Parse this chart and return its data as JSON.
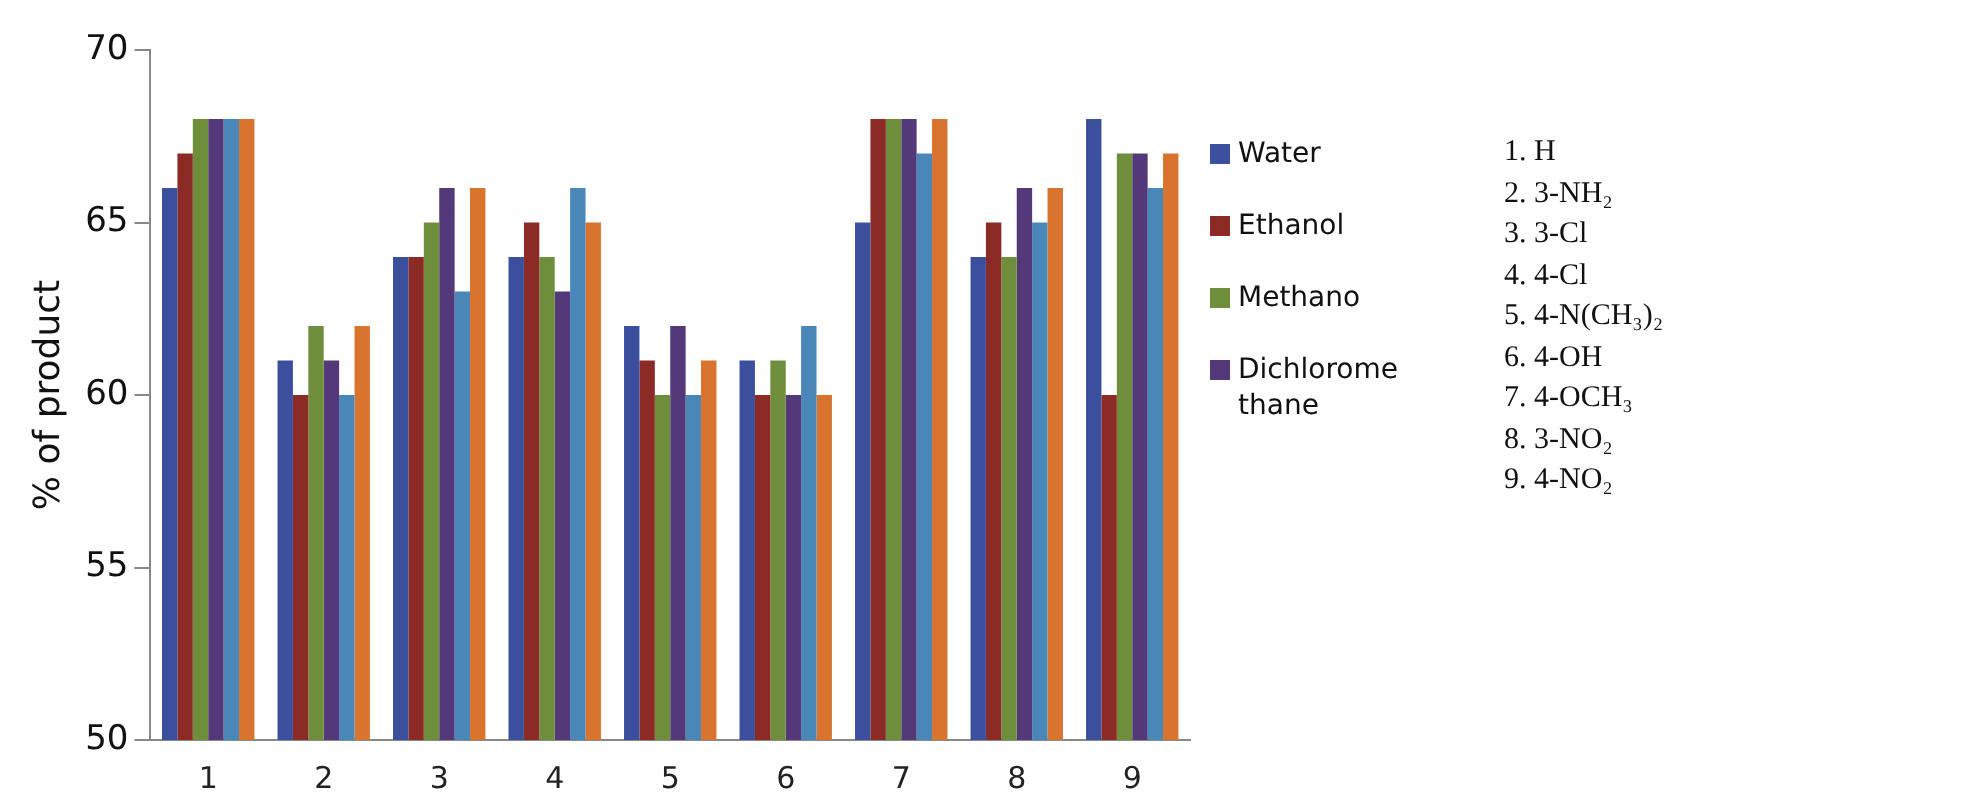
{
  "chart_data": {
    "type": "bar",
    "ylabel": "% of product",
    "categories": [
      "1",
      "2",
      "3",
      "4",
      "5",
      "6",
      "7",
      "8",
      "9"
    ],
    "series": [
      {
        "name": "Water",
        "color": "#3b4f9c",
        "values": [
          66,
          61,
          64,
          64,
          62,
          61,
          65,
          64,
          68
        ]
      },
      {
        "name": "Ethanol",
        "color": "#8c2b26",
        "values": [
          67,
          60,
          64,
          65,
          61,
          60,
          68,
          65,
          60
        ]
      },
      {
        "name": "Methano",
        "color": "#6e8e3c",
        "values": [
          68,
          62,
          65,
          64,
          60,
          61,
          68,
          64,
          67
        ]
      },
      {
        "name": "Dichloromethane",
        "color": "#54397a",
        "values": [
          68,
          61,
          66,
          63,
          62,
          60,
          68,
          66,
          67
        ]
      },
      {
        "color": "#4a87b9",
        "values": [
          68,
          60,
          63,
          66,
          60,
          62,
          67,
          65,
          66
        ]
      },
      {
        "color": "#d9742e",
        "values": [
          68,
          62,
          66,
          65,
          61,
          60,
          68,
          66,
          67
        ]
      }
    ],
    "ylim": [
      50,
      70
    ],
    "yticks": [
      50,
      55,
      60,
      65,
      70
    ],
    "grid": false,
    "legend": "right",
    "annotations": [
      "1. H",
      "2. 3-NH₂",
      "3. 3-Cl",
      "4. 4-Cl",
      "5. 4-N(CH₃)₂",
      "6. 4-OH",
      "7. 4-OCH₃",
      "8. 3-NO₂",
      "9. 4-NO₂"
    ]
  }
}
